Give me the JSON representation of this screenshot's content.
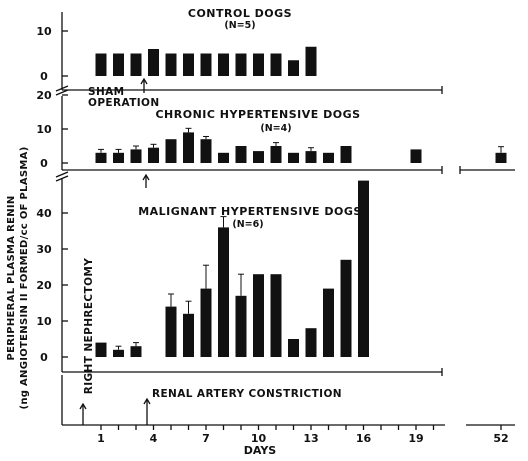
{
  "chart_data": {
    "type": "bar",
    "ylabel_line1": "PERIPHERAL PLASMA RENIN",
    "ylabel_line2": "(ng ANGIOTENSIN II FORMED/cc OF PLASMA)",
    "xlabel": "DAYS",
    "x_ticks": [
      "1",
      "4",
      "7",
      "10",
      "13",
      "16",
      "19",
      "52"
    ],
    "panels": [
      {
        "id": "control",
        "title": "CONTROL DOGS",
        "subtitle": "(N=5)",
        "y_ticks": [
          "0",
          "10"
        ],
        "ylim": [
          0,
          15
        ],
        "x": [
          1,
          2,
          3,
          4,
          5,
          6,
          7,
          8,
          9,
          10,
          11,
          12,
          13
        ],
        "values": [
          5,
          5,
          5,
          6,
          5,
          5,
          5,
          5,
          5,
          5,
          5,
          3.5,
          6.5
        ],
        "errors": [
          0,
          0,
          0,
          0,
          0,
          0,
          0,
          0,
          0,
          0,
          0,
          0,
          0
        ],
        "annotation": "SHAM OPERATION",
        "annotation_x": 3.3
      },
      {
        "id": "chronic",
        "title": "CHRONIC HYPERTENSIVE DOGS",
        "subtitle": "(N=4)",
        "y_ticks": [
          "0",
          "10",
          "20"
        ],
        "ylim": [
          0,
          20
        ],
        "x": [
          1,
          2,
          3,
          4,
          5,
          6,
          7,
          8,
          9,
          10,
          11,
          12,
          13,
          14,
          15,
          19,
          52
        ],
        "values": [
          3,
          3,
          4,
          4.5,
          7,
          9,
          7,
          3,
          5,
          3.5,
          5,
          3,
          3.5,
          3,
          5,
          4,
          3
        ],
        "errors": [
          1,
          1,
          1,
          1,
          0,
          1.2,
          0.8,
          0,
          0,
          0,
          1,
          0,
          1,
          0,
          0,
          0,
          1.8
        ]
      },
      {
        "id": "malignant",
        "title": "MALIGNANT HYPERTENSIVE DOGS",
        "subtitle": "(N=6)",
        "y_ticks": [
          "0",
          "10",
          "20",
          "30",
          "40"
        ],
        "ylim": [
          0,
          48
        ],
        "x": [
          1,
          2,
          3,
          5,
          6,
          7,
          8,
          9,
          10,
          11,
          12,
          13,
          14,
          15,
          16
        ],
        "values": [
          4,
          2,
          3,
          14,
          12,
          19,
          36,
          17,
          23,
          23,
          5,
          8,
          19,
          27,
          49
        ],
        "errors": [
          0,
          1,
          1,
          3.5,
          3.5,
          6.5,
          3,
          6,
          0,
          0,
          0,
          0,
          0,
          0,
          0
        ],
        "events": [
          {
            "label": "RIGHT NEPHRECTOMY",
            "x": 0
          },
          {
            "label": "RENAL ARTERY CONSTRICTION",
            "x": 3.3
          }
        ]
      }
    ]
  }
}
